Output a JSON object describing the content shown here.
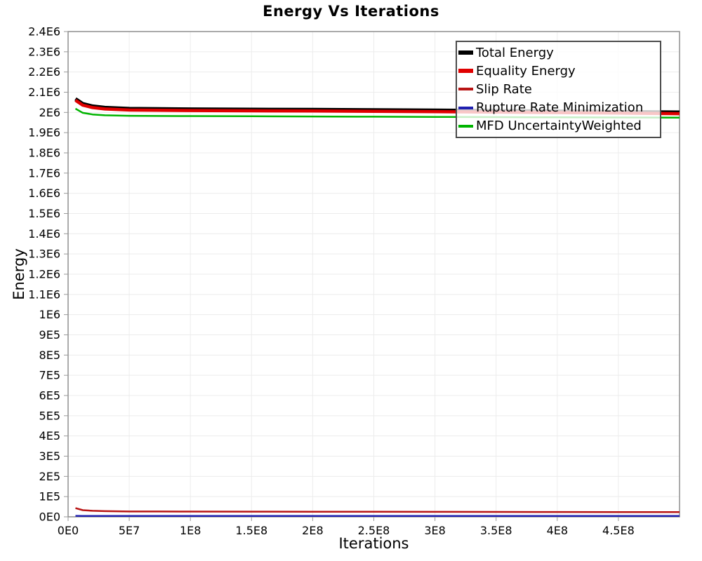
{
  "chart": {
    "title": "Energy Vs Iterations",
    "xlabel": "Iterations",
    "ylabel": "Energy"
  },
  "chart_data": {
    "type": "line",
    "title": "Energy Vs Iterations",
    "xlabel": "Iterations",
    "ylabel": "Energy",
    "xlim": [
      0,
      500000000
    ],
    "ylim": [
      0,
      2400000
    ],
    "grid": true,
    "grid_color": "#ececec",
    "border_color": "#8f8f8f",
    "tick_color": "#9a9a9a",
    "legend_position": "top-right",
    "x_ticks": [
      {
        "v": 0,
        "label": "0E0"
      },
      {
        "v": 50000000,
        "label": "5E7"
      },
      {
        "v": 100000000,
        "label": "1E8"
      },
      {
        "v": 150000000,
        "label": "1.5E8"
      },
      {
        "v": 200000000,
        "label": "2E8"
      },
      {
        "v": 250000000,
        "label": "2.5E8"
      },
      {
        "v": 300000000,
        "label": "3E8"
      },
      {
        "v": 350000000,
        "label": "3.5E8"
      },
      {
        "v": 400000000,
        "label": "4E8"
      },
      {
        "v": 450000000,
        "label": "4.5E8"
      }
    ],
    "y_ticks": [
      {
        "v": 0,
        "label": "0E0"
      },
      {
        "v": 100000,
        "label": "1E5"
      },
      {
        "v": 200000,
        "label": "2E5"
      },
      {
        "v": 300000,
        "label": "3E5"
      },
      {
        "v": 400000,
        "label": "4E5"
      },
      {
        "v": 500000,
        "label": "5E5"
      },
      {
        "v": 600000,
        "label": "6E5"
      },
      {
        "v": 700000,
        "label": "7E5"
      },
      {
        "v": 800000,
        "label": "8E5"
      },
      {
        "v": 900000,
        "label": "9E5"
      },
      {
        "v": 1000000,
        "label": "1E6"
      },
      {
        "v": 1100000,
        "label": "1.1E6"
      },
      {
        "v": 1200000,
        "label": "1.2E6"
      },
      {
        "v": 1300000,
        "label": "1.3E6"
      },
      {
        "v": 1400000,
        "label": "1.4E6"
      },
      {
        "v": 1500000,
        "label": "1.5E6"
      },
      {
        "v": 1600000,
        "label": "1.6E6"
      },
      {
        "v": 1700000,
        "label": "1.7E6"
      },
      {
        "v": 1800000,
        "label": "1.8E6"
      },
      {
        "v": 1900000,
        "label": "1.9E6"
      },
      {
        "v": 2000000,
        "label": "2E6"
      },
      {
        "v": 2100000,
        "label": "2.1E6"
      },
      {
        "v": 2200000,
        "label": "2.2E6"
      },
      {
        "v": 2300000,
        "label": "2.3E6"
      },
      {
        "v": 2400000,
        "label": "2.4E6"
      }
    ],
    "x": [
      6000000,
      12000000,
      20000000,
      30000000,
      50000000,
      75000000,
      100000000,
      150000000,
      200000000,
      250000000,
      300000000,
      350000000,
      400000000,
      450000000,
      500000000
    ],
    "series": [
      {
        "name": "Total Energy",
        "color": "#000000",
        "width": 5,
        "values": [
          2067000,
          2043000,
          2031000,
          2024000,
          2019000,
          2017500,
          2016500,
          2015000,
          2014000,
          2012500,
          2011000,
          2008500,
          2006000,
          2003500,
          2001000
        ]
      },
      {
        "name": "Equality Energy",
        "color": "#e00000",
        "width": 4.5,
        "values": [
          2060000,
          2036000,
          2024000,
          2017000,
          2012000,
          2010500,
          2009500,
          2008000,
          2007000,
          2005500,
          2004000,
          2001500,
          1999000,
          1996500,
          1994000
        ]
      },
      {
        "name": "Slip Rate",
        "color": "#b81414",
        "width": 2.5,
        "values": [
          43000,
          33000,
          30000,
          28000,
          26500,
          26200,
          26000,
          25500,
          25000,
          24800,
          24500,
          24200,
          24000,
          23700,
          23500
        ]
      },
      {
        "name": "Rupture Rate Minimization",
        "color": "#2020b0",
        "width": 2.5,
        "values": [
          5000,
          4200,
          4000,
          4000,
          4000,
          4000,
          4000,
          4000,
          4000,
          4000,
          4000,
          4000,
          4000,
          4000,
          4000
        ]
      },
      {
        "name": "MFD UncertaintyWeighted",
        "color": "#00b400",
        "width": 2.5,
        "values": [
          2019000,
          1998000,
          1990000,
          1986000,
          1983500,
          1982500,
          1982000,
          1981000,
          1980000,
          1979000,
          1978000,
          1977000,
          1976000,
          1975000,
          1974000
        ]
      }
    ]
  }
}
